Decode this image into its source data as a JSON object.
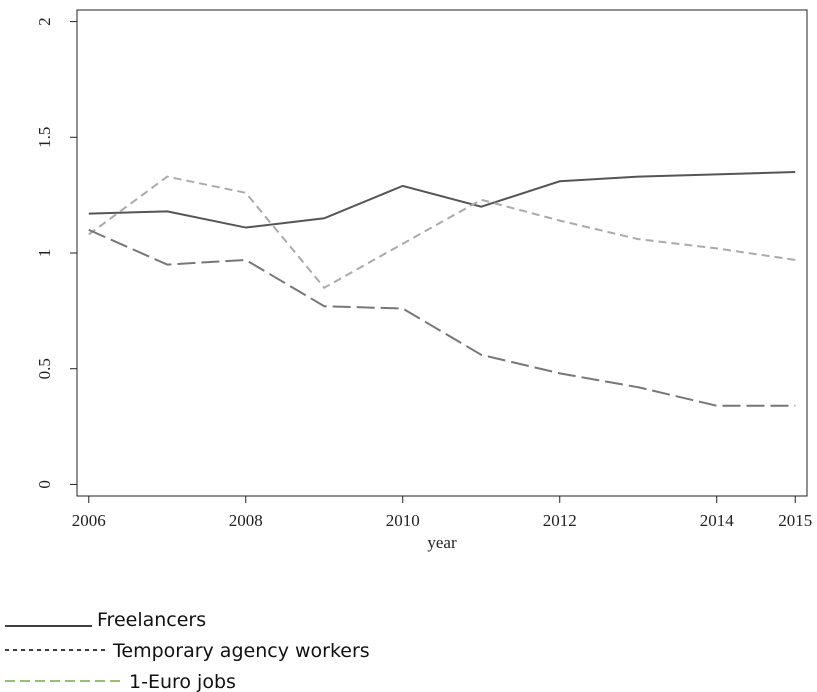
{
  "chart_data": {
    "type": "line",
    "x_label": "year",
    "x": [
      2006,
      2007,
      2008,
      2009,
      2010,
      2011,
      2012,
      2013,
      2014,
      2015
    ],
    "xlim": [
      2005.85,
      2015.15
    ],
    "xticks": [
      2006,
      2008,
      2010,
      2012,
      2014,
      2015
    ],
    "ylim": [
      -0.05,
      2.05
    ],
    "yticks": [
      0,
      0.5,
      1,
      1.5,
      2
    ],
    "series": [
      {
        "name": "Freelancers",
        "color": "#555555",
        "legend_color": "#000000",
        "dash": "none",
        "values": [
          1.17,
          1.18,
          1.11,
          1.15,
          1.29,
          1.2,
          1.31,
          1.33,
          1.34,
          1.35
        ]
      },
      {
        "name": "Temporary agency workers",
        "color": "#aaaaaa",
        "legend_color": "#000000",
        "dash": "8,5",
        "values": [
          1.08,
          1.33,
          1.26,
          0.85,
          1.04,
          1.23,
          1.14,
          1.06,
          1.02,
          0.97
        ]
      },
      {
        "name": "1-Euro jobs",
        "color": "#777777",
        "legend_color": "#70ad47",
        "dash": "18,6",
        "values": [
          1.1,
          0.95,
          0.97,
          0.77,
          0.76,
          0.56,
          0.48,
          0.42,
          0.34,
          0.34
        ]
      }
    ]
  }
}
